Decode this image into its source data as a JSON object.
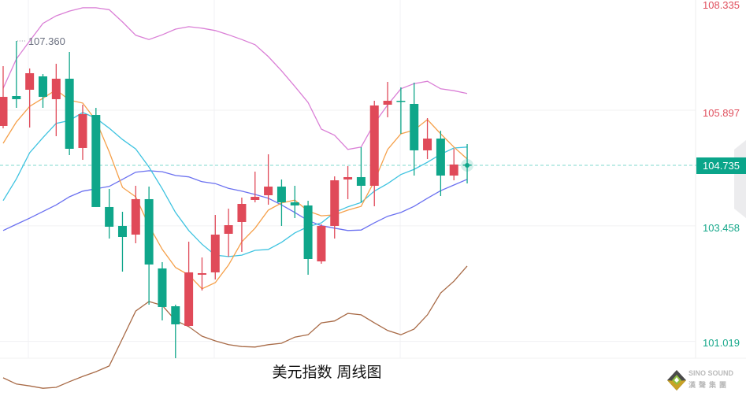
{
  "chart_data": {
    "type": "candlestick",
    "title": "美元指数 周线图",
    "ylim": [
      99.867,
      108.224
    ],
    "y_ticks": [
      108.335,
      105.897,
      103.458,
      101.019
    ],
    "y_tick_labels": [
      "108.335",
      "105.897",
      "103.458",
      "101.019"
    ],
    "current_price": 104.735,
    "current_price_label": "104.735",
    "max_annotation": {
      "value": 107.36,
      "label": "107.360",
      "candle_index": 1
    },
    "colors": {
      "up": "#e04a59",
      "down": "#0fa68a",
      "ma_orange": "#f5a04a",
      "ma_cyan": "#3ec3e0",
      "mid_blue": "#6a70f0",
      "upper_band": "#da7fd6",
      "lower_band": "#a86a46",
      "current_line": "#7fd8cc"
    },
    "candles": [
      [
        105.566,
        106.828,
        105.516,
        106.18
      ],
      [
        106.197,
        107.36,
        105.948,
        106.131
      ],
      [
        106.33,
        106.779,
        105.533,
        106.679
      ],
      [
        106.612,
        106.662,
        105.948,
        106.18
      ],
      [
        106.131,
        106.878,
        105.35,
        106.563
      ],
      [
        106.563,
        107.127,
        104.951,
        105.084
      ],
      [
        105.101,
        106.014,
        104.851,
        105.815
      ],
      [
        105.798,
        105.948,
        103.855,
        103.855
      ],
      [
        103.855,
        104.237,
        103.19,
        103.439
      ],
      [
        103.456,
        103.755,
        102.492,
        103.223
      ],
      [
        103.273,
        104.303,
        103.09,
        104.021
      ],
      [
        104.021,
        104.286,
        101.794,
        102.642
      ],
      [
        102.559,
        102.692,
        101.462,
        101.745
      ],
      [
        101.761,
        101.794,
        100.665,
        101.379
      ],
      [
        101.346,
        103.124,
        101.329,
        102.476
      ],
      [
        102.426,
        102.791,
        102.093,
        102.459
      ],
      [
        102.476,
        103.688,
        102.326,
        103.273
      ],
      [
        103.29,
        103.821,
        102.808,
        103.472
      ],
      [
        103.539,
        104.054,
        102.908,
        103.921
      ],
      [
        104.004,
        104.602,
        103.954,
        104.07
      ],
      [
        104.104,
        104.968,
        103.904,
        104.286
      ],
      [
        104.286,
        104.436,
        103.456,
        103.954
      ],
      [
        103.954,
        104.303,
        103.622,
        103.888
      ],
      [
        103.888,
        103.987,
        102.426,
        102.758
      ],
      [
        102.708,
        103.489,
        102.658,
        103.456
      ],
      [
        103.456,
        104.502,
        103.19,
        104.419
      ],
      [
        104.436,
        104.718,
        104.021,
        104.486
      ],
      [
        104.486,
        105.117,
        103.954,
        104.303
      ],
      [
        104.303,
        106.097,
        103.871,
        105.998
      ],
      [
        106.014,
        106.496,
        105.749,
        106.097
      ],
      [
        106.097,
        106.38,
        105.4,
        106.081
      ],
      [
        106.031,
        106.48,
        104.519,
        105.051
      ],
      [
        105.051,
        105.732,
        104.868,
        105.3
      ],
      [
        105.3,
        105.466,
        104.087,
        104.519
      ],
      [
        104.519,
        105.084,
        104.419,
        104.752
      ],
      [
        104.752,
        105.184,
        104.353,
        104.735
      ]
    ],
    "candle_fields": [
      "open",
      "high",
      "low",
      "close"
    ],
    "lines": {
      "ma_orange": [
        105.2,
        105.65,
        105.98,
        106.15,
        106.33,
        106.11,
        106.05,
        105.68,
        105.02,
        104.27,
        104.07,
        103.46,
        102.96,
        102.58,
        102.42,
        102.13,
        102.26,
        102.63,
        103.12,
        103.41,
        103.79,
        103.94,
        104.0,
        103.77,
        103.67,
        103.69,
        103.79,
        103.87,
        104.4,
        105.07,
        105.4,
        105.48,
        105.7,
        105.4,
        105.12,
        104.87
      ],
      "ma_cyan": [
        103.99,
        104.45,
        105.0,
        105.32,
        105.62,
        105.68,
        105.85,
        105.73,
        105.52,
        105.28,
        105.08,
        104.7,
        104.24,
        103.74,
        103.36,
        103.07,
        102.84,
        102.81,
        102.84,
        102.94,
        102.96,
        103.11,
        103.31,
        103.44,
        103.52,
        103.74,
        103.86,
        103.95,
        104.19,
        104.35,
        104.54,
        104.65,
        104.8,
        104.97,
        105.1,
        105.12
      ],
      "mid_blue": [
        103.36,
        103.49,
        103.62,
        103.76,
        103.9,
        104.07,
        104.19,
        104.24,
        104.29,
        104.44,
        104.59,
        104.62,
        104.6,
        104.52,
        104.49,
        104.39,
        104.35,
        104.25,
        104.19,
        104.12,
        104.04,
        103.9,
        103.74,
        103.57,
        103.46,
        103.41,
        103.36,
        103.37,
        103.52,
        103.66,
        103.74,
        103.87,
        104.04,
        104.2,
        104.32,
        104.44
      ],
      "upper_band": [
        106.36,
        106.98,
        107.36,
        107.73,
        107.89,
        107.99,
        108.06,
        108.06,
        108.02,
        107.76,
        107.48,
        107.39,
        107.49,
        107.61,
        107.66,
        107.63,
        107.58,
        107.49,
        107.39,
        107.28,
        107.03,
        106.73,
        106.4,
        106.06,
        105.5,
        105.37,
        105.07,
        105.12,
        105.62,
        106.01,
        106.35,
        106.46,
        106.51,
        106.35,
        106.31,
        106.25
      ],
      "lower_band": [
        100.25,
        100.12,
        100.08,
        100.03,
        100.05,
        100.17,
        100.28,
        100.38,
        100.5,
        101.08,
        101.66,
        101.86,
        101.78,
        101.46,
        101.33,
        101.13,
        101.03,
        100.95,
        100.91,
        100.9,
        100.95,
        100.98,
        101.11,
        101.16,
        101.41,
        101.45,
        101.61,
        101.58,
        101.41,
        101.25,
        101.16,
        101.28,
        101.58,
        102.04,
        102.29,
        102.61
      ]
    },
    "grid": true
  },
  "logo": {
    "line1": "SINO SOUND",
    "line2": "漢聲集團"
  }
}
